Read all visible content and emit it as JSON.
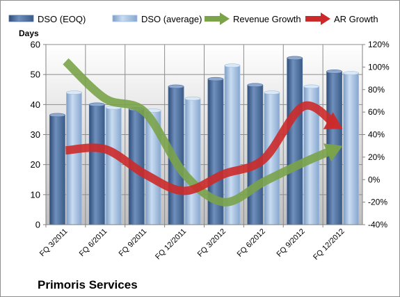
{
  "chart_data": {
    "type": "bar",
    "subtitle": "Primoris Services",
    "ylabel": "Days",
    "y2label": "",
    "categories": [
      "FQ 3/2011",
      "FQ 6/2011",
      "FQ 9/2011",
      "FQ 12/2011",
      "FQ 3/2012",
      "FQ 6/2012",
      "FQ 9/2012",
      "FQ 12/2012"
    ],
    "ylim": [
      0,
      60
    ],
    "y2lim": [
      -40,
      120
    ],
    "yticks": [
      "0",
      "10",
      "20",
      "30",
      "40",
      "50",
      "60"
    ],
    "y2ticks": [
      "-40%",
      "-20%",
      "0%",
      "20%",
      "40%",
      "60%",
      "80%",
      "100%",
      "120%"
    ],
    "grid": true,
    "legend_position": "top",
    "series": [
      {
        "name": "DSO (EOQ)",
        "type": "bar",
        "axis": "left",
        "color": "#4f6f9c",
        "values": [
          36.5,
          40,
          38.5,
          46,
          48.5,
          46.5,
          55.5,
          51
        ]
      },
      {
        "name": "DSO (average)",
        "type": "bar",
        "axis": "left",
        "color": "#a2bfe1",
        "values": [
          44,
          39,
          38,
          42,
          53,
          44,
          46,
          50.5
        ]
      },
      {
        "name": "Revenue Growth",
        "type": "line",
        "axis": "right",
        "color": "#7aa34a",
        "values": [
          105,
          72,
          60,
          5,
          -20,
          -2,
          15,
          30
        ]
      },
      {
        "name": "AR Growth",
        "type": "line",
        "axis": "right",
        "color": "#cc2a2a",
        "values": [
          26,
          27,
          5,
          -10,
          5,
          18,
          65,
          45
        ]
      }
    ]
  }
}
